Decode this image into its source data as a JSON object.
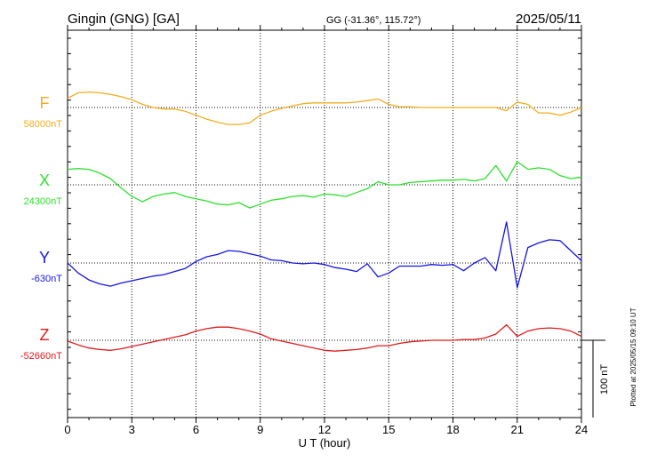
{
  "header": {
    "station": "Gingin (GNG)  [GA]",
    "coords": "GG (-31.36°, 115.72°)",
    "date": "2025/05/11"
  },
  "plotted_note": "Plotted at 2025/05/15 09:10 UT",
  "scale_bar_label": "100 nT",
  "chart_data": {
    "type": "line",
    "title": "Gingin (GNG)  [GA]",
    "xlabel": "U T (hour)",
    "xlim": [
      0,
      24
    ],
    "xticks": [
      "0",
      "3",
      "6",
      "9",
      "12",
      "15",
      "18",
      "21",
      "24"
    ],
    "grid": true,
    "scale_nT": 100,
    "series": [
      {
        "name": "F",
        "baseline_label": "58000nT",
        "color": "#f2ae1c",
        "baseline_nT": 58000,
        "x": [
          0,
          0.5,
          1,
          1.5,
          2,
          2.5,
          3,
          3.5,
          4,
          4.5,
          5,
          5.5,
          6,
          6.5,
          7,
          7.5,
          8,
          8.5,
          9,
          9.5,
          10,
          10.5,
          11,
          11.5,
          12,
          12.5,
          13,
          13.5,
          14,
          14.5,
          15,
          15.5,
          16,
          16.5,
          17,
          17.5,
          18,
          18.5,
          19,
          19.5,
          20,
          20.5,
          21,
          21.5,
          22,
          22.5,
          23,
          23.5,
          24
        ],
        "values": [
          58012,
          58019,
          58020,
          58019,
          58017,
          58014,
          58010,
          58004,
          58000,
          57998,
          57998,
          57995,
          57990,
          57985,
          57981,
          57978,
          57978,
          57980,
          57990,
          57995,
          57999,
          58002,
          58005,
          58006,
          58006,
          58006,
          58006,
          58007,
          58009,
          58011,
          58004,
          58001,
          58001,
          58000,
          58000,
          58000,
          58000,
          58000,
          58000,
          58000,
          58000,
          57996,
          58007,
          58004,
          57993,
          57993,
          57990,
          57994,
          58000
        ]
      },
      {
        "name": "X",
        "baseline_label": "24300nT",
        "color": "#2ee02e",
        "baseline_nT": 24300,
        "x": [
          0,
          0.5,
          1,
          1.5,
          2,
          2.5,
          3,
          3.5,
          4,
          4.5,
          5,
          5.5,
          6,
          6.5,
          7,
          7.5,
          8,
          8.5,
          9,
          9.5,
          10,
          10.5,
          11,
          11.5,
          12,
          12.5,
          13,
          13.5,
          14,
          14.5,
          15,
          15.5,
          16,
          16.5,
          17,
          17.5,
          18,
          18.5,
          19,
          19.5,
          20,
          20.5,
          21,
          21.5,
          22,
          22.5,
          23,
          23.5,
          24
        ],
        "values": [
          24320,
          24321,
          24320,
          24315,
          24308,
          24296,
          24285,
          24278,
          24285,
          24288,
          24290,
          24285,
          24282,
          24279,
          24275,
          24274,
          24277,
          24270,
          24275,
          24280,
          24282,
          24285,
          24286,
          24284,
          24288,
          24287,
          24285,
          24290,
          24295,
          24304,
          24300,
          24300,
          24303,
          24304,
          24305,
          24306,
          24306,
          24307,
          24305,
          24308,
          24325,
          24305,
          24330,
          24320,
          24322,
          24320,
          24312,
          24308,
          24310
        ]
      },
      {
        "name": "Y",
        "baseline_label": "-630nT",
        "color": "#1515e6",
        "baseline_nT": -630,
        "x": [
          0,
          0.5,
          1,
          1.5,
          2,
          2.5,
          3,
          3.5,
          4,
          4.5,
          5,
          5.5,
          6,
          6.5,
          7,
          7.5,
          8,
          8.5,
          9,
          9.5,
          10,
          10.5,
          11,
          11.5,
          12,
          12.5,
          13,
          13.5,
          14,
          14.5,
          15,
          15.5,
          16,
          16.5,
          17,
          17.5,
          18,
          18.5,
          19,
          19.5,
          20,
          20.5,
          21,
          21.5,
          22,
          22.5,
          23,
          23.5,
          24
        ],
        "values": [
          -630,
          -643,
          -652,
          -657,
          -660,
          -656,
          -653,
          -650,
          -647,
          -645,
          -641,
          -637,
          -628,
          -622,
          -619,
          -614,
          -615,
          -618,
          -621,
          -626,
          -627,
          -630,
          -631,
          -630,
          -632,
          -636,
          -638,
          -641,
          -631,
          -648,
          -643,
          -634,
          -634,
          -634,
          -632,
          -633,
          -632,
          -640,
          -630,
          -623,
          -640,
          -577,
          -662,
          -610,
          -604,
          -600,
          -601,
          -614,
          -627
        ]
      },
      {
        "name": "Z",
        "baseline_label": "-52660nT",
        "color": "#e11b1b",
        "baseline_nT": -52660,
        "x": [
          0,
          0.5,
          1,
          1.5,
          2,
          2.5,
          3,
          3.5,
          4,
          4.5,
          5,
          5.5,
          6,
          6.5,
          7,
          7.5,
          8,
          8.5,
          9,
          9.5,
          10,
          10.5,
          11,
          11.5,
          12,
          12.5,
          13,
          13.5,
          14,
          14.5,
          15,
          15.5,
          16,
          16.5,
          17,
          17.5,
          18,
          18.5,
          19,
          19.5,
          20,
          20.5,
          21,
          21.5,
          22,
          22.5,
          23,
          23.5,
          24
        ],
        "values": [
          -52661,
          -52666,
          -52670,
          -52672,
          -52673,
          -52671,
          -52668,
          -52665,
          -52662,
          -52659,
          -52656,
          -52653,
          -52648,
          -52645,
          -52643,
          -52643,
          -52645,
          -52648,
          -52652,
          -52658,
          -52661,
          -52664,
          -52667,
          -52670,
          -52673,
          -52674,
          -52673,
          -52672,
          -52670,
          -52667,
          -52667,
          -52664,
          -52662,
          -52661,
          -52660,
          -52660,
          -52660,
          -52659,
          -52659,
          -52657,
          -52652,
          -52640,
          -52655,
          -52648,
          -52645,
          -52644,
          -52645,
          -52648,
          -52655
        ]
      }
    ]
  }
}
